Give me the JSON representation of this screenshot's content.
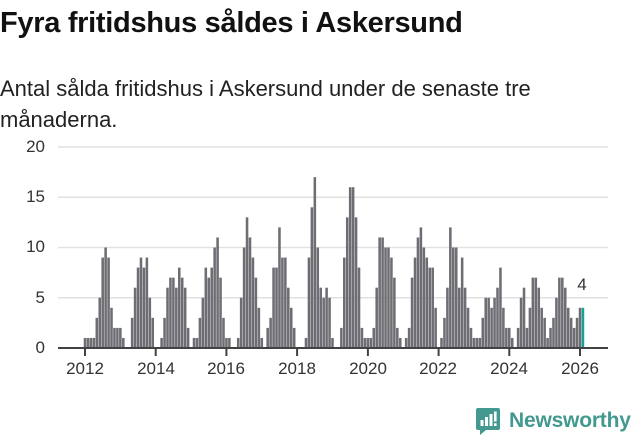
{
  "header": {
    "title": "Fyra fritidshus såldes i Askersund",
    "subtitle": "Antal sålda fritidshus i Askersund under de senaste tre månaderna."
  },
  "branding": {
    "name": "Newsworthy",
    "icon": "newsworthy-chart-bubble-icon",
    "color": "#43998f"
  },
  "chart_data": {
    "type": "bar",
    "title": "Fyra fritidshus såldes i Askersund",
    "subtitle": "Antal sålda fritidshus i Askersund under de senaste tre månaderna.",
    "xlabel": "",
    "ylabel": "",
    "ylim": [
      0,
      20
    ],
    "grid": true,
    "legend": null,
    "frequency": "monthly",
    "y_tick_labels": [
      "0",
      "5",
      "10",
      "15",
      "20"
    ],
    "x_tick_labels": [
      "2012",
      "2014",
      "2016",
      "2018",
      "2020",
      "2022",
      "2024",
      "2026"
    ],
    "bar_color": "#6e6d73",
    "highlight": {
      "category": "2026-02",
      "value": 4,
      "label": "4",
      "color": "#17a096"
    },
    "categories": [
      "2012-01",
      "2012-02",
      "2012-03",
      "2012-04",
      "2012-05",
      "2012-06",
      "2012-07",
      "2012-08",
      "2012-09",
      "2012-10",
      "2012-11",
      "2012-12",
      "2013-01",
      "2013-02",
      "2013-03",
      "2013-04",
      "2013-05",
      "2013-06",
      "2013-07",
      "2013-08",
      "2013-09",
      "2013-10",
      "2013-11",
      "2013-12",
      "2014-01",
      "2014-02",
      "2014-03",
      "2014-04",
      "2014-05",
      "2014-06",
      "2014-07",
      "2014-08",
      "2014-09",
      "2014-10",
      "2014-11",
      "2014-12",
      "2015-01",
      "2015-02",
      "2015-03",
      "2015-04",
      "2015-05",
      "2015-06",
      "2015-07",
      "2015-08",
      "2015-09",
      "2015-10",
      "2015-11",
      "2015-12",
      "2016-01",
      "2016-02",
      "2016-03",
      "2016-04",
      "2016-05",
      "2016-06",
      "2016-07",
      "2016-08",
      "2016-09",
      "2016-10",
      "2016-11",
      "2016-12",
      "2017-01",
      "2017-02",
      "2017-03",
      "2017-04",
      "2017-05",
      "2017-06",
      "2017-07",
      "2017-08",
      "2017-09",
      "2017-10",
      "2017-11",
      "2017-12",
      "2018-01",
      "2018-02",
      "2018-03",
      "2018-04",
      "2018-05",
      "2018-06",
      "2018-07",
      "2018-08",
      "2018-09",
      "2018-10",
      "2018-11",
      "2018-12",
      "2019-01",
      "2019-02",
      "2019-03",
      "2019-04",
      "2019-05",
      "2019-06",
      "2019-07",
      "2019-08",
      "2019-09",
      "2019-10",
      "2019-11",
      "2019-12",
      "2020-01",
      "2020-02",
      "2020-03",
      "2020-04",
      "2020-05",
      "2020-06",
      "2020-07",
      "2020-08",
      "2020-09",
      "2020-10",
      "2020-11",
      "2020-12",
      "2021-01",
      "2021-02",
      "2021-03",
      "2021-04",
      "2021-05",
      "2021-06",
      "2021-07",
      "2021-08",
      "2021-09",
      "2021-10",
      "2021-11",
      "2021-12",
      "2022-01",
      "2022-02",
      "2022-03",
      "2022-04",
      "2022-05",
      "2022-06",
      "2022-07",
      "2022-08",
      "2022-09",
      "2022-10",
      "2022-11",
      "2022-12",
      "2023-01",
      "2023-02",
      "2023-03",
      "2023-04",
      "2023-05",
      "2023-06",
      "2023-07",
      "2023-08",
      "2023-09",
      "2023-10",
      "2023-11",
      "2023-12",
      "2024-01",
      "2024-02",
      "2024-03",
      "2024-04",
      "2024-05",
      "2024-06",
      "2024-07",
      "2024-08",
      "2024-09",
      "2024-10",
      "2024-11",
      "2024-12",
      "2025-01",
      "2025-02",
      "2025-03",
      "2025-04",
      "2025-05",
      "2025-06",
      "2025-07",
      "2025-08",
      "2025-09",
      "2025-10",
      "2025-11",
      "2025-12",
      "2026-01",
      "2026-02"
    ],
    "values": [
      1,
      1,
      1,
      1,
      3,
      5,
      9,
      10,
      9,
      4,
      2,
      2,
      2,
      1,
      0,
      0,
      3,
      6,
      8,
      9,
      8,
      9,
      5,
      3,
      0,
      0,
      1,
      3,
      6,
      7,
      7,
      6,
      8,
      7,
      6,
      2,
      0,
      1,
      1,
      3,
      5,
      8,
      7,
      8,
      10,
      11,
      7,
      3,
      1,
      1,
      0,
      0,
      1,
      5,
      10,
      13,
      11,
      9,
      7,
      4,
      1,
      0,
      2,
      3,
      8,
      8,
      12,
      9,
      9,
      6,
      4,
      2,
      0,
      0,
      0,
      1,
      9,
      14,
      17,
      10,
      6,
      5,
      6,
      5,
      1,
      0,
      0,
      2,
      9,
      13,
      16,
      16,
      13,
      8,
      2,
      1,
      1,
      1,
      2,
      6,
      11,
      11,
      10,
      10,
      9,
      7,
      2,
      1,
      0,
      1,
      2,
      7,
      9,
      11,
      12,
      10,
      9,
      8,
      8,
      4,
      0,
      1,
      3,
      6,
      12,
      10,
      10,
      6,
      9,
      6,
      4,
      2,
      1,
      1,
      1,
      3,
      5,
      5,
      4,
      5,
      6,
      8,
      4,
      2,
      2,
      1,
      0,
      2,
      5,
      6,
      2,
      4,
      7,
      7,
      6,
      4,
      3,
      1,
      2,
      3,
      5,
      7,
      7,
      6,
      4,
      3,
      2,
      3,
      4,
      4
    ]
  }
}
